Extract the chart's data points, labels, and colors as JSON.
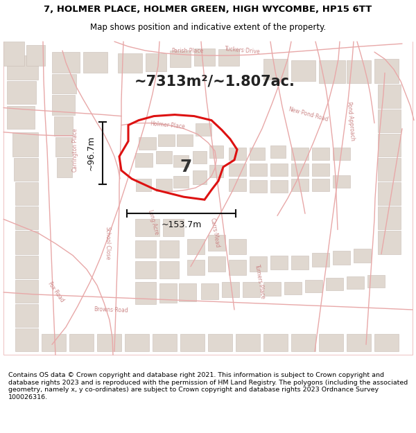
{
  "title_line1": "7, HOLMER PLACE, HOLMER GREEN, HIGH WYCOMBE, HP15 6TT",
  "title_line2": "Map shows position and indicative extent of the property.",
  "area_text": "~7313m²/~1.807ac.",
  "dimension_width": "~153.7m",
  "dimension_height": "~96.7m",
  "plot_number": "7",
  "footer_text": "Contains OS data © Crown copyright and database right 2021. This information is subject to Crown copyright and database rights 2023 and is reproduced with the permission of HM Land Registry. The polygons (including the associated geometry, namely x, y co-ordinates) are subject to Crown copyright and database rights 2023 Ordnance Survey 100026316.",
  "map_bg": "#f7f4f2",
  "road_color": "#e8a8a8",
  "building_color": "#e0d8d0",
  "building_edge": "#c8bdb5",
  "highlight_edge": "#dd1111",
  "title_bg": "#ffffff",
  "footer_bg": "#ffffff"
}
